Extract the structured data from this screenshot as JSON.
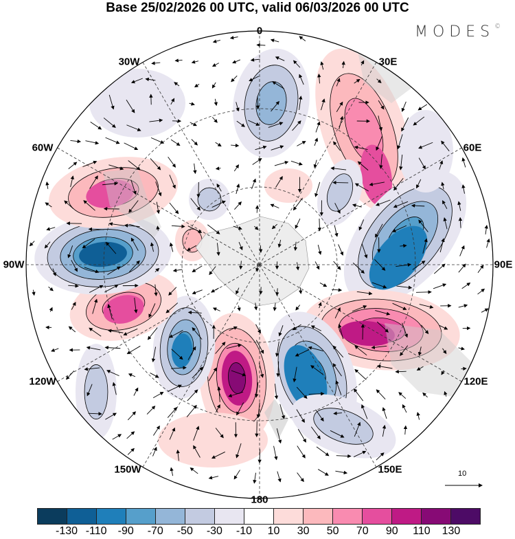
{
  "title": "Base 25/02/2026 00 UTC, valid 06/03/2026 00 UTC",
  "logo": {
    "text": "MODES",
    "mark": "©"
  },
  "longitude_labels": [
    "0",
    "30E",
    "60E",
    "90E",
    "120E",
    "150E",
    "180",
    "150W",
    "120W",
    "90W",
    "60W",
    "30W"
  ],
  "reference_vector": {
    "label": "10"
  },
  "colorbar": {
    "colors": [
      "#0b3c5d",
      "#0f5f96",
      "#1f7fba",
      "#569fcb",
      "#94b6d8",
      "#c3cbe1",
      "#e8e6f1",
      "#ffffff",
      "#fddcda",
      "#fcb9bd",
      "#f98bb0",
      "#e54e9e",
      "#bf1a85",
      "#870a75",
      "#4d0b66"
    ],
    "ticks": [
      "-130",
      "-110",
      "-90",
      "-70",
      "-50",
      "-30",
      "-10",
      "10",
      "30",
      "50",
      "70",
      "90",
      "110",
      "130"
    ]
  },
  "land_color": "#ededed"
}
